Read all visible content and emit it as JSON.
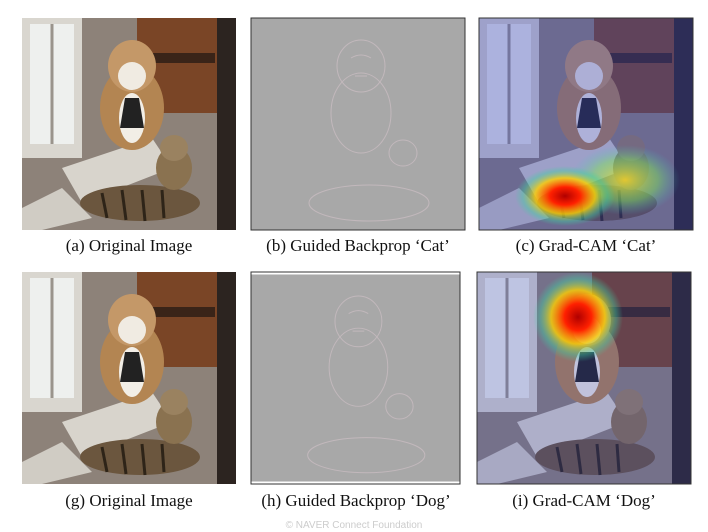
{
  "figure": {
    "panels": [
      {
        "caption": "(a) Original Image"
      },
      {
        "caption": "(b) Guided Backprop ‘Cat’"
      },
      {
        "caption": "(c) Grad-CAM ‘Cat’"
      },
      {
        "caption": "(g) Original Image"
      },
      {
        "caption": "(h) Guided Backprop ‘Dog’"
      },
      {
        "caption": "(i) Grad-CAM ‘Dog’"
      }
    ],
    "watermark": "© NAVER Connect Foundation"
  }
}
